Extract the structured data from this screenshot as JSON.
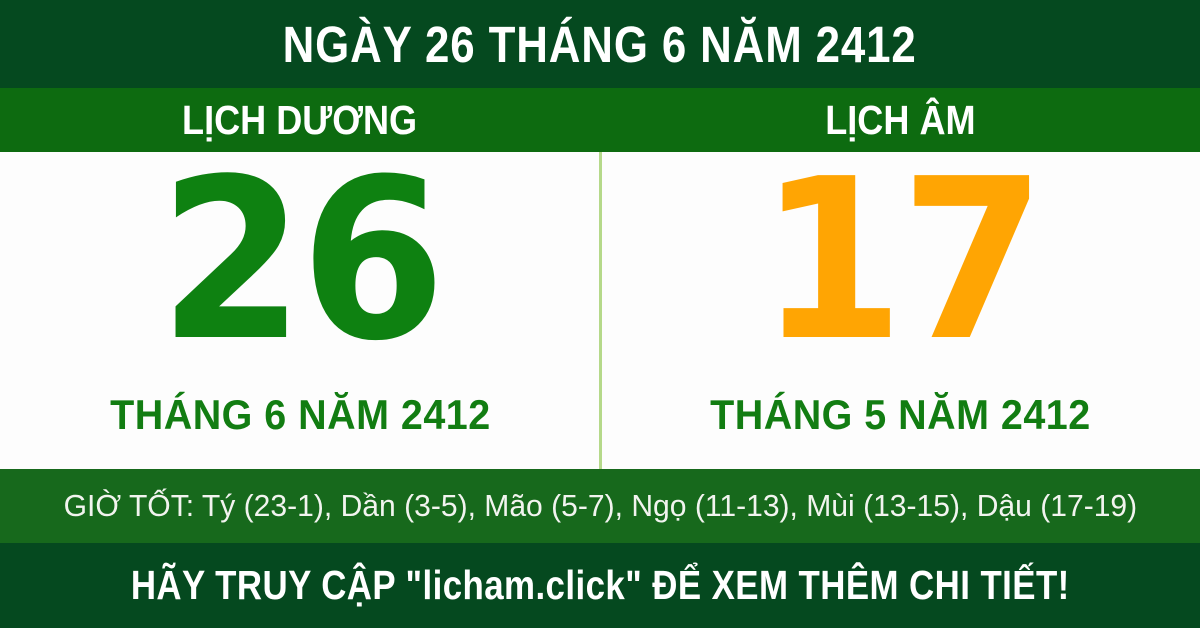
{
  "header": {
    "title": "NGÀY 26 THÁNG 6 NĂM 2412"
  },
  "calendar": {
    "solar": {
      "label": "LỊCH DƯƠNG",
      "day": "26",
      "month_year": "THÁNG 6 NĂM 2412"
    },
    "lunar": {
      "label": "LỊCH ÂM",
      "day": "17",
      "month_year": "THÁNG 5 NĂM 2412"
    }
  },
  "good_hours": {
    "text": "GIỜ TỐT: Tý (23-1), Dần (3-5), Mão (5-7), Ngọ (11-13), Mùi (13-15), Dậu (17-19)"
  },
  "footer": {
    "text": "HÃY TRUY CẬP \"licham.click\" ĐỂ XEM THÊM CHI TIẾT!"
  },
  "colors": {
    "dark_green": "#05491f",
    "medium_green": "#0d6b10",
    "hours_green": "#17691c",
    "solar_day_green": "#0e8111",
    "lunar_day_orange": "#ffa503",
    "month_label_green": "#127d12",
    "divider_light_green": "#b5d98a",
    "panel_white": "#fdfdfd",
    "text_white": "#ffffff"
  }
}
